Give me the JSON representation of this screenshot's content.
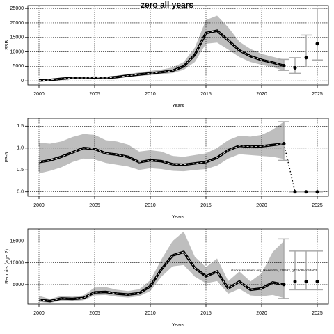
{
  "chart_data": [
    {
      "type": "line",
      "title": "zero all years",
      "xlabel": "Years",
      "ylabel": "SSB",
      "x": [
        2000,
        2001,
        2002,
        2003,
        2004,
        2005,
        2006,
        2007,
        2008,
        2009,
        2010,
        2011,
        2012,
        2013,
        2014,
        2015,
        2016,
        2017,
        2018,
        2019,
        2020,
        2021,
        2022
      ],
      "values": [
        100,
        300,
        700,
        1000,
        1000,
        1100,
        1000,
        1300,
        1800,
        2200,
        2600,
        3000,
        3500,
        5000,
        9000,
        16500,
        17300,
        14000,
        10500,
        8500,
        7200,
        6300,
        5200
      ],
      "lower": [
        50,
        200,
        500,
        700,
        700,
        800,
        700,
        900,
        1300,
        1700,
        2000,
        2300,
        2700,
        3800,
        6500,
        12800,
        13200,
        10800,
        8200,
        6500,
        5500,
        4700,
        3600
      ],
      "upper": [
        200,
        500,
        1000,
        1300,
        1400,
        1500,
        1400,
        1800,
        2400,
        2900,
        3400,
        3900,
        4600,
        6500,
        11500,
        21000,
        22500,
        18500,
        13500,
        11000,
        9300,
        8300,
        7400
      ],
      "proj_x": [
        2022,
        2023,
        2024,
        2025
      ],
      "proj_values": [
        5200,
        4500,
        8000,
        12800
      ],
      "proj_lower": [
        3600,
        2600,
        4800,
        7200
      ],
      "proj_upper": [
        7400,
        8000,
        15800,
        25000
      ],
      "xlim": [
        1999,
        2026
      ],
      "ylim": [
        -1400,
        26000
      ],
      "xticks": [
        2000,
        2005,
        2010,
        2015,
        2020,
        2025
      ],
      "yticks": [
        0,
        5000,
        10000,
        15000,
        20000,
        25000
      ],
      "color": "#000000",
      "band_color": "#bebebe",
      "bar_color": "#aaaaaa",
      "grid": true
    },
    {
      "type": "line",
      "xlabel": "Years",
      "ylabel": "F3-5",
      "x": [
        2000,
        2001,
        2002,
        2003,
        2004,
        2005,
        2006,
        2007,
        2008,
        2009,
        2010,
        2011,
        2012,
        2013,
        2014,
        2015,
        2016,
        2017,
        2018,
        2019,
        2020,
        2021,
        2022
      ],
      "values": [
        0.68,
        0.72,
        0.8,
        0.9,
        1.0,
        0.98,
        0.88,
        0.85,
        0.8,
        0.68,
        0.72,
        0.7,
        0.63,
        0.62,
        0.65,
        0.68,
        0.78,
        0.95,
        1.05,
        1.03,
        1.04,
        1.07,
        1.1
      ],
      "lower": [
        0.42,
        0.48,
        0.56,
        0.68,
        0.76,
        0.74,
        0.66,
        0.62,
        0.58,
        0.5,
        0.54,
        0.52,
        0.48,
        0.47,
        0.5,
        0.52,
        0.6,
        0.76,
        0.86,
        0.84,
        0.82,
        0.8,
        0.75
      ],
      "upper": [
        1.12,
        1.1,
        1.15,
        1.25,
        1.32,
        1.3,
        1.18,
        1.15,
        1.08,
        0.92,
        0.95,
        0.92,
        0.82,
        0.8,
        0.84,
        0.88,
        1.0,
        1.18,
        1.28,
        1.26,
        1.3,
        1.42,
        1.6
      ],
      "proj_x": [
        2022,
        2023,
        2024,
        2025
      ],
      "proj_values": [
        1.1,
        0,
        0,
        0
      ],
      "proj_lower": [
        0.72,
        0,
        0,
        0
      ],
      "proj_upper": [
        1.6,
        0,
        0,
        0
      ],
      "proj_linestyle": "dotted",
      "xlim": [
        1999,
        2026
      ],
      "ylim": [
        -0.1,
        1.68
      ],
      "xticks": [
        2000,
        2005,
        2010,
        2015,
        2020,
        2025
      ],
      "yticks": [
        {
          "value": 0,
          "label": "0.0"
        },
        0.5,
        {
          "value": 1,
          "label": "1.0"
        },
        1.5
      ],
      "color": "#000000",
      "band_color": "#bebebe",
      "bar_color": "#aaaaaa",
      "grid": true
    },
    {
      "type": "line",
      "xlabel": "Years",
      "ylabel": "Recruits (age 2)",
      "annotation": "stockassessment.org, likesendret, r18592, git:c9c8acc53a0d",
      "x": [
        2000,
        2001,
        2002,
        2003,
        2004,
        2005,
        2006,
        2007,
        2008,
        2009,
        2010,
        2011,
        2012,
        2013,
        2014,
        2015,
        2016,
        2017,
        2018,
        2019,
        2020,
        2021,
        2022
      ],
      "values": [
        1500,
        1200,
        1800,
        1700,
        1900,
        3200,
        3300,
        2900,
        2700,
        3000,
        4600,
        8500,
        11700,
        12500,
        8800,
        6900,
        8000,
        4100,
        5700,
        3800,
        4100,
        5500,
        5000
      ],
      "lower": [
        1000,
        800,
        1300,
        1200,
        1400,
        2500,
        2600,
        2200,
        2000,
        2300,
        3500,
        6800,
        9200,
        9500,
        6800,
        5300,
        5800,
        2900,
        4000,
        2500,
        2300,
        2600,
        1900
      ],
      "upper": [
        2400,
        1700,
        2400,
        2200,
        2500,
        4300,
        4400,
        3800,
        3500,
        3900,
        6000,
        10800,
        15000,
        17200,
        11400,
        9000,
        11000,
        5800,
        8000,
        5700,
        7600,
        12500,
        15000
      ],
      "proj_x": [
        2022,
        2023,
        2024,
        2025
      ],
      "proj_values": [
        5000,
        5700,
        5700,
        5700
      ],
      "proj_lower": [
        1800,
        3800,
        3800,
        3800
      ],
      "proj_upper": [
        15500,
        12700,
        12700,
        12700
      ],
      "xlim": [
        1999,
        2026
      ],
      "ylim": [
        500,
        17800
      ],
      "xticks": [
        2000,
        2005,
        2010,
        2015,
        2020,
        2025
      ],
      "yticks": [
        5000,
        10000,
        15000
      ],
      "color": "#000000",
      "band_color": "#bebebe",
      "bar_color": "#aaaaaa",
      "grid": true
    }
  ]
}
